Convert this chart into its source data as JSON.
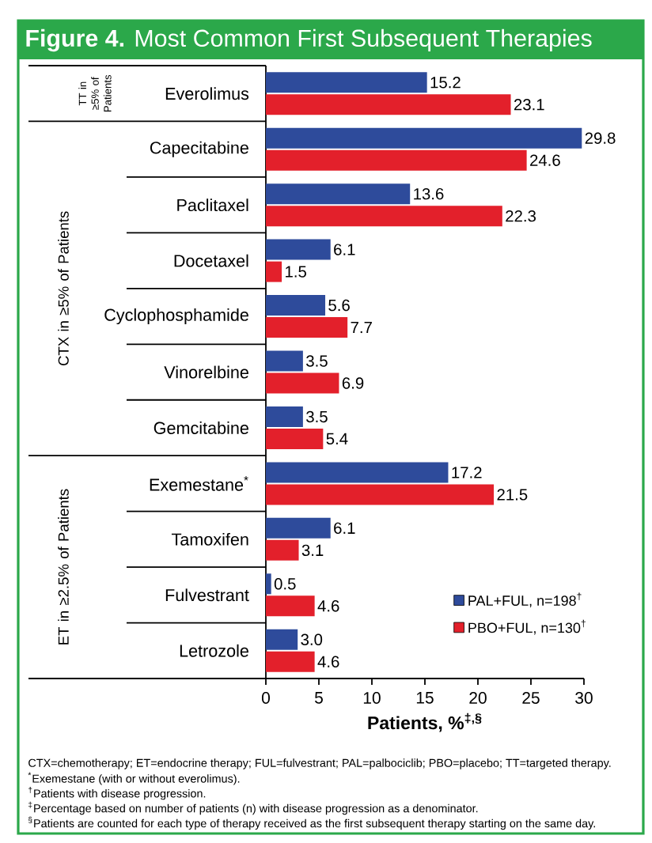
{
  "chart_data": {
    "type": "bar",
    "orientation": "horizontal",
    "title": "**Figure 4.** Most Common First Subsequent Therapies",
    "categories": [
      "Everolimus",
      "Capecitabine",
      "Paclitaxel",
      "Docetaxel",
      "Cyclophosphamide",
      "Vinorelbine",
      "Gemcitabine",
      "Exemestane$^{*}$",
      "Tamoxifen",
      "Fulvestrant",
      "Letrozole"
    ],
    "series": [
      {
        "name": "PAL+FUL, n=198$^{†}$",
        "color": "#2e4b9b",
        "values": [
          15.2,
          29.8,
          13.6,
          6.1,
          5.6,
          3.5,
          3.5,
          17.2,
          6.1,
          0.5,
          3.0
        ],
        "value_labels": [
          "15.2",
          "29.8",
          "13.6",
          "6.1",
          "5.6",
          "3.5",
          "3.5",
          "17.2",
          "6.1",
          "0.5",
          "3.0"
        ]
      },
      {
        "name": "PBO+FUL, n=130$^{†}$",
        "color": "#e3202b",
        "values": [
          23.1,
          24.6,
          22.3,
          1.5,
          7.7,
          6.9,
          5.4,
          21.5,
          3.1,
          4.6,
          4.6
        ],
        "value_labels": [
          "23.1",
          "24.6",
          "22.3",
          "1.5",
          "7.7",
          "6.9",
          "5.4",
          "21.5",
          "3.1",
          "4.6",
          "4.6"
        ]
      }
    ],
    "xlabel": "Patients, %$^{‡,§}$",
    "xlim": [
      0,
      30
    ],
    "xticks": [
      0,
      5,
      10,
      15,
      20,
      25,
      30
    ],
    "legend": "bottom right",
    "annotations": [
      "TT in ≥5% of Patients",
      "CTX in ≥5% of Patients",
      "ET in ≥2.5% of Patients",
      "CTX=chemotherapy; ET=endocrine therapy; FUL=fulvestrant; PAL=palbociclib; PBO=placebo; TT=targeted therapy.",
      "$^{*}$Exemestane (with or without everolimus).",
      "$^{†}$Patients with disease progression.",
      "$^{‡}$Percentage based on number of patients (n) with disease progression as a denominator.",
      "$^{§}$Patients are counted for each type of therapy received as the first subsequent therapy starting on the same day."
    ]
  }
}
